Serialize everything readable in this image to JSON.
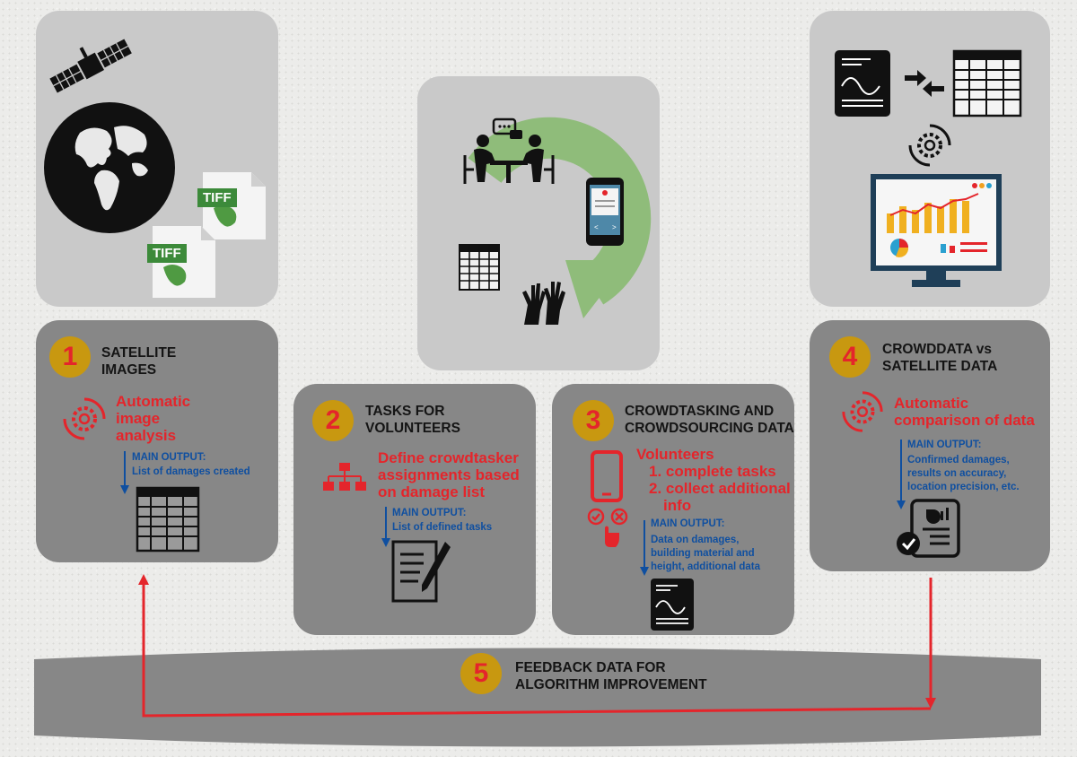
{
  "colors": {
    "badge": "#c89810",
    "accent_red": "#e4252b",
    "output_blue": "#0f4fa0",
    "panel": "#878787",
    "panel_light": "#c9c9c9",
    "cycle_green": "#8fbc7a"
  },
  "tiff_label": "TIFF",
  "step1": {
    "number": "1",
    "title": [
      "SATELLITE",
      "IMAGES"
    ],
    "action": [
      "Automatic",
      "image",
      "analysis"
    ],
    "output_heading": "MAIN OUTPUT:",
    "output_text": [
      "List of damages created"
    ]
  },
  "step2": {
    "number": "2",
    "title": [
      "TASKS FOR",
      "VOLUNTEERS"
    ],
    "action": [
      "Define crowdtasker",
      "assignments based",
      "on damage list"
    ],
    "output_heading": "MAIN OUTPUT:",
    "output_text": [
      "List of defined tasks"
    ]
  },
  "step3": {
    "number": "3",
    "title": [
      "CROWDTASKING AND",
      "CROWDSOURCING DATA"
    ],
    "action": [
      "Volunteers",
      "1. complete tasks",
      "2. collect additional",
      "info"
    ],
    "output_heading": "MAIN OUTPUT:",
    "output_text": [
      "Data on damages,",
      "building material and",
      "height, additional data"
    ]
  },
  "step4": {
    "number": "4",
    "title": [
      "CROWDDATA vs",
      "SATELLITE DATA"
    ],
    "action": [
      "Automatic",
      "comparison of data"
    ],
    "output_heading": "MAIN OUTPUT:",
    "output_text": [
      "Confirmed damages,",
      "results on accuracy,",
      "location precision, etc."
    ]
  },
  "step5": {
    "number": "5",
    "title": [
      "FEEDBACK DATA FOR",
      "ALGORITHM IMPROVEMENT"
    ]
  },
  "icons": [
    "satellite-icon",
    "globe-icon",
    "tiff-file-icon",
    "meeting-icon",
    "smartphone-icon",
    "table-icon",
    "raised-hands-icon",
    "document-icon",
    "compare-arrows-icon",
    "gear-cycle-icon",
    "monitor-dashboard-icon",
    "org-chart-icon",
    "writing-icon",
    "touch-choice-icon",
    "report-check-icon"
  ]
}
